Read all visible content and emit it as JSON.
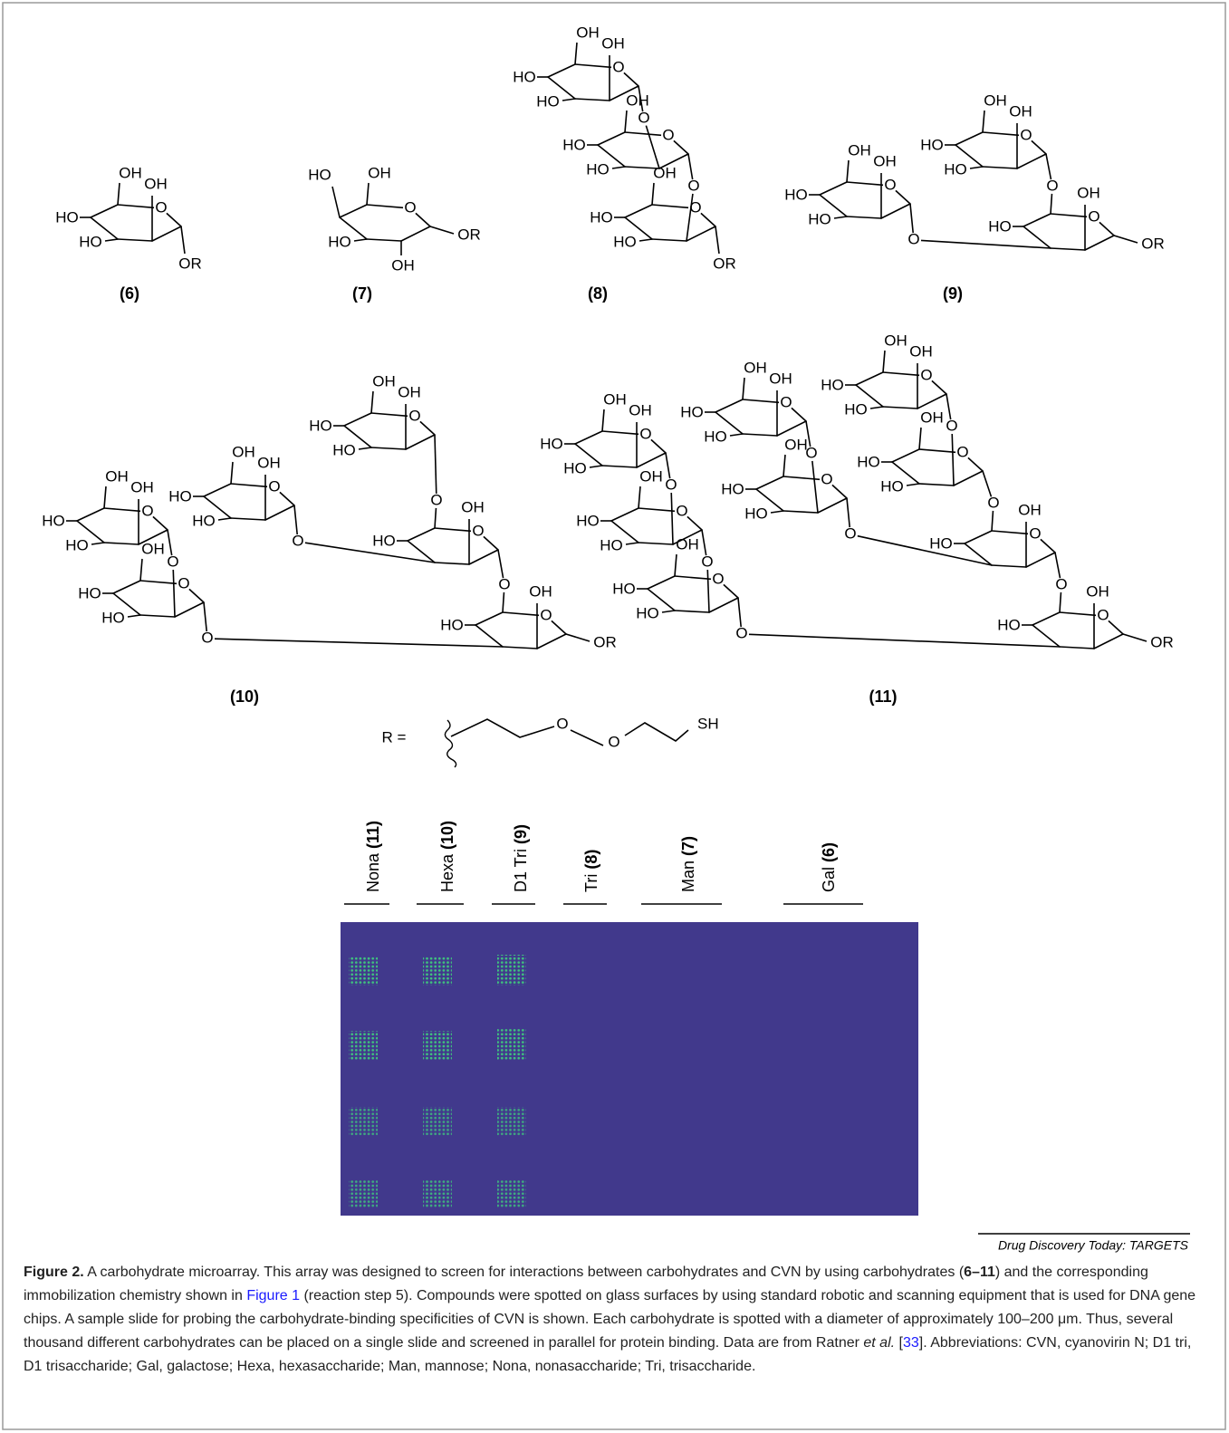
{
  "structures": [
    {
      "label": "(6)",
      "rings": [
        {
          "c6": "OH",
          "c2": "OH",
          "c4": "HO",
          "c3": "HO",
          "o5": "O"
        }
      ],
      "links": [],
      "anomer": "OR"
    },
    {
      "label": "(7)",
      "rings": [
        {
          "c4ax": "HO",
          "c6": "OH",
          "c3": "HO",
          "c2eq": "OH",
          "o5": "O"
        }
      ],
      "links": [],
      "anomer": "OR"
    },
    {
      "label": "(8)",
      "rings": [
        {
          "c6": "OH",
          "c2": "OH",
          "c4": "HO",
          "c3": "HO",
          "o5": "O"
        },
        {
          "c6": "OH",
          "c4": "HO",
          "c3": "HO",
          "o5": "O"
        },
        {
          "c6": "OH",
          "c4": "HO",
          "c3": "HO",
          "o5": "O"
        }
      ],
      "links": [
        "O",
        "O"
      ],
      "anomer": "OR"
    },
    {
      "label": "(9)",
      "rings": [
        {
          "c6": "OH",
          "c2": "OH",
          "c4": "HO",
          "c3": "HO",
          "o5": "O"
        },
        {
          "c6": "OH",
          "c2": "OH",
          "c4": "HO",
          "c3": "HO",
          "o5": "O"
        },
        {
          "c2": "OH",
          "c4": "HO",
          "o5": "O"
        }
      ],
      "links": [
        "O",
        "O"
      ],
      "anomer": "OR"
    },
    {
      "label": "(10)",
      "rings": [
        {
          "c6": "OH",
          "c2": "OH",
          "c4": "HO",
          "c3": "HO",
          "o5": "O"
        },
        {
          "c6": "OH",
          "c4": "HO",
          "c3": "HO",
          "o5": "O"
        },
        {
          "c6": "OH",
          "c2": "OH",
          "c4": "HO",
          "c3": "HO",
          "o5": "O"
        },
        {
          "c6": "OH",
          "c2": "OH",
          "c4": "HO",
          "c3": "HO",
          "o5": "O"
        },
        {
          "c2": "OH",
          "c4": "HO",
          "o5": "O"
        },
        {
          "c2": "OH",
          "c4": "HO",
          "o5": "O"
        }
      ],
      "links": [
        "O",
        "O",
        "O",
        "O",
        "O"
      ],
      "anomer": "OR"
    },
    {
      "label": "(11)",
      "rings": [
        {
          "c6": "OH",
          "c2": "OH",
          "c4": "HO",
          "c3": "HO",
          "o5": "O"
        },
        {
          "c6": "OH",
          "c4": "HO",
          "c3": "HO",
          "o5": "O"
        },
        {
          "c6": "OH",
          "c4": "HO",
          "c3": "HO",
          "o5": "O"
        },
        {
          "c6": "OH",
          "c2": "OH",
          "c4": "HO",
          "c3": "HO",
          "o5": "O"
        },
        {
          "c6": "OH",
          "c4": "HO",
          "c3": "HO",
          "o5": "O"
        },
        {
          "c6": "OH",
          "c2": "OH",
          "c4": "HO",
          "c3": "HO",
          "o5": "O"
        },
        {
          "c6": "OH",
          "c4": "HO",
          "c3": "HO",
          "o5": "O"
        },
        {
          "c2": "OH",
          "c4": "HO",
          "o5": "O"
        },
        {
          "c2": "OH",
          "c4": "HO",
          "o5": "O"
        }
      ],
      "links": [
        "O",
        "O",
        "O",
        "O",
        "O",
        "O",
        "O",
        "O"
      ],
      "anomer": "OR"
    }
  ],
  "r_group": {
    "label": "R =",
    "atoms": [
      "O",
      "O",
      "SH"
    ]
  },
  "array": {
    "columns": [
      {
        "name": "Nona",
        "compound": "(11)"
      },
      {
        "name": "Hexa",
        "compound": "(10)"
      },
      {
        "name": "D1 Tri",
        "compound": "(9)"
      },
      {
        "name": "Tri",
        "compound": "(8)"
      },
      {
        "name": "Man",
        "compound": "(7)"
      },
      {
        "name": "Gal",
        "compound": "(6)"
      }
    ]
  },
  "source": "Drug Discovery Today: TARGETS",
  "caption": {
    "label": "Figure 2.",
    "text1": " A carbohydrate microarray. This array was designed to screen for interactions between carbohydrates and CVN by using carbohydrates (",
    "compounds": "6–11",
    "text2": ") and the corresponding immobilization chemistry shown in ",
    "figure_link": "Figure 1",
    "text3": " (reaction step 5). Compounds were spotted on glass surfaces by using standard robotic and scanning equipment that is used for DNA gene chips. A sample slide for probing the carbohydrate-binding specificities of CVN is shown. Each carbohydrate is spotted with a diameter of approximately 100–200 μm. Thus, several thousand different carbohydrates can be placed on a single slide and screened in parallel for protein binding. Data are from Ratner ",
    "etal": "et al.",
    "text4": " [",
    "ref": "33",
    "text5": "]. Abbreviations: CVN, cyanovirin N; D1 tri, D1 trisaccharide; Gal, galactose; Hexa, hexasaccharide; Man, mannose; Nona, nonasaccharide; Tri, trisaccharide."
  }
}
